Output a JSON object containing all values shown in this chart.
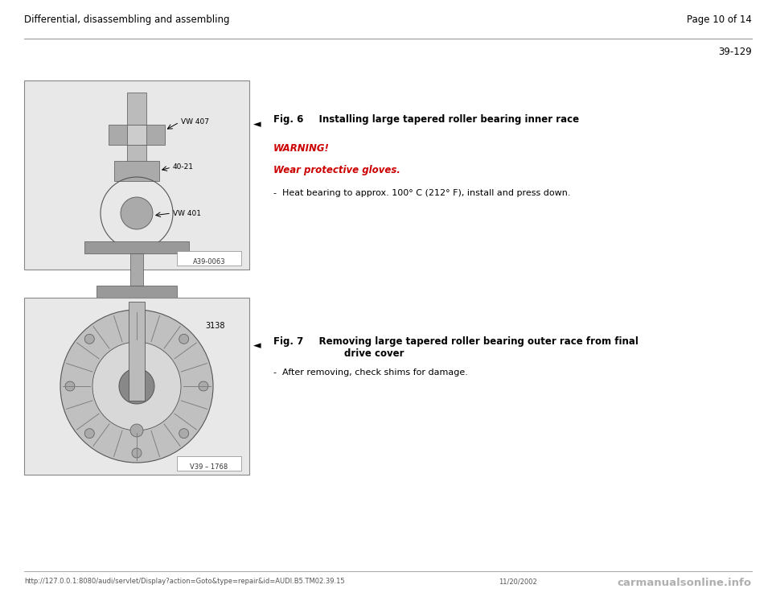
{
  "bg_color": "#ffffff",
  "page_width": 9.6,
  "page_height": 7.42,
  "header_left": "Differential, disassembling and assembling",
  "header_right": "Page 10 of 14",
  "page_number": "39-129",
  "fig6": {
    "caption_bold": "Fig. 6",
    "caption_rest": "     Installing large tapered roller bearing inner race",
    "warning_label": "WARNING!",
    "warning_subtext": "Wear protective gloves.",
    "bullet": "-  Heat bearing to approx. 100° C (212° F), install and press down.",
    "image_label": "A39-0063",
    "vw407": "VW 407",
    "label4021": "40-21",
    "vw401": "VW 401"
  },
  "fig7": {
    "caption_bold": "Fig. 7",
    "caption_line1": "     Removing large tapered roller bearing outer race from final",
    "caption_line2": "          drive cover",
    "bullet": "-  After removing, check shims for damage.",
    "image_label": "V39 – 1768",
    "label3138": "3138"
  },
  "footer_url": "http://127.0.0.1:8080/audi/servlet/Display?action=Goto&type=repair&id=AUDI.B5.TM02.39.15",
  "footer_date": "11/20/2002",
  "footer_logo": "carmanualsonline.info",
  "font_color": "#000000",
  "red_color": "#cc0000",
  "gray_color": "#666666",
  "light_gray": "#cccccc",
  "header_font_size": 8.5,
  "body_font_size": 8,
  "caption_font_size": 8.5,
  "page_num_font_size": 8.5,
  "footer_font_size": 6
}
